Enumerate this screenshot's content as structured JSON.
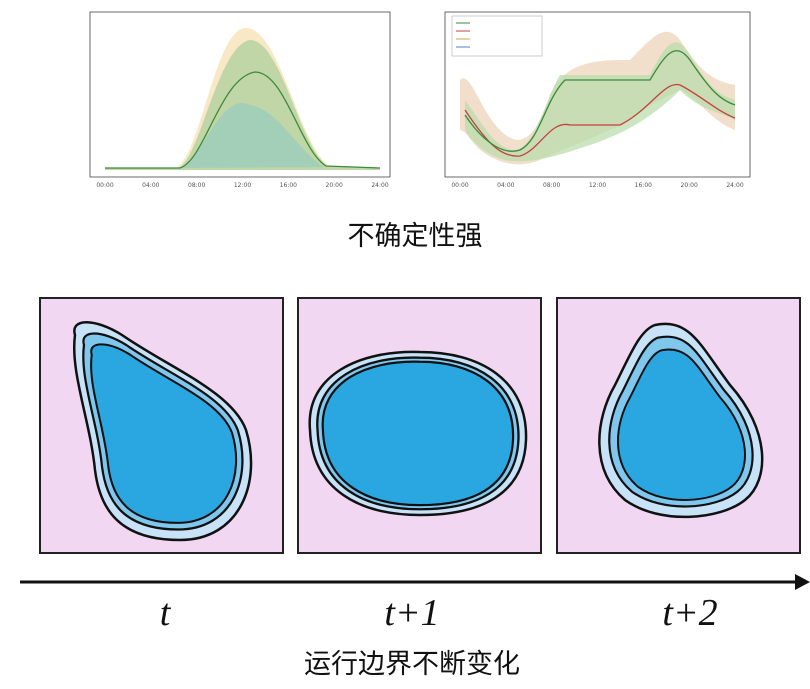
{
  "charts": [
    {
      "xticks": [
        "00:00",
        "04:00",
        "08:00",
        "12:00",
        "16:00",
        "20:00",
        "24:00"
      ]
    },
    {
      "xticks": [
        "00:00",
        "04:00",
        "08:00",
        "12:00",
        "16:00",
        "20:00",
        "24:00"
      ]
    }
  ],
  "caption_top": "不确定性强",
  "panels": [
    {
      "label": "t"
    },
    {
      "label": "t+1"
    },
    {
      "label": "t+2"
    }
  ],
  "caption_bottom": "运行边界不断变化"
}
